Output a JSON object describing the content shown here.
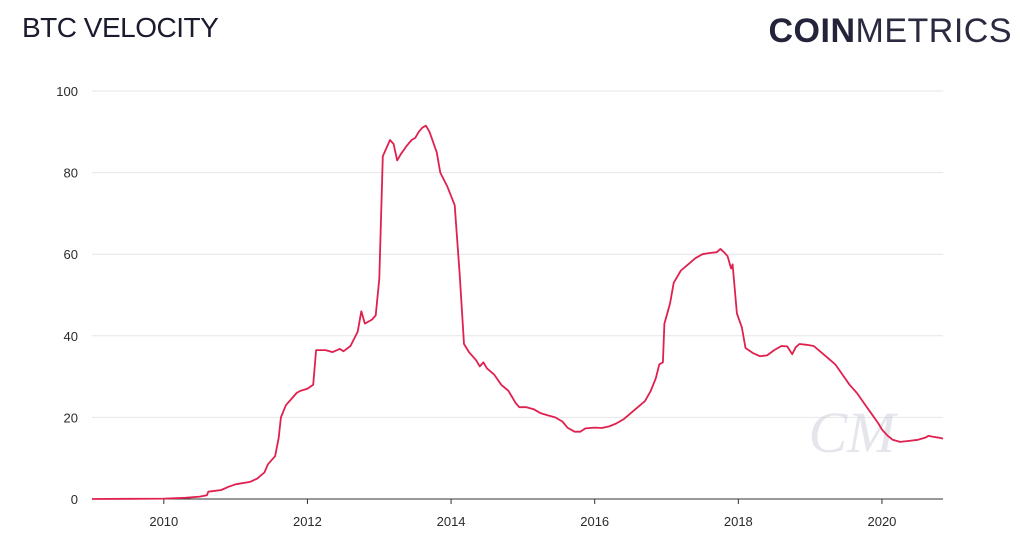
{
  "header": {
    "title": "BTC VELOCITY",
    "logo_bold": "COIN",
    "logo_light": "METRICS",
    "watermark": "CM"
  },
  "colors": {
    "line": "#e0204f",
    "grid": "#e6e6e6",
    "axis": "#333333",
    "watermark": "#cfd3de"
  },
  "chart_data": {
    "type": "line",
    "title": "BTC VELOCITY",
    "xlabel": "",
    "ylabel": "",
    "xlim": [
      2009.0,
      2020.85
    ],
    "ylim": [
      0,
      100
    ],
    "x_ticks": [
      2010,
      2012,
      2014,
      2016,
      2018,
      2020
    ],
    "y_ticks": [
      0,
      20,
      40,
      60,
      80,
      100
    ],
    "grid": "horizontal",
    "series": [
      {
        "name": "",
        "color": "#e0204f",
        "points": [
          [
            2009.0,
            0
          ],
          [
            2009.5,
            0.05
          ],
          [
            2010.0,
            0.1
          ],
          [
            2010.3,
            0.3
          ],
          [
            2010.5,
            0.6
          ],
          [
            2010.6,
            0.9
          ],
          [
            2010.62,
            1.8
          ],
          [
            2010.8,
            2.2
          ],
          [
            2010.9,
            3.0
          ],
          [
            2011.0,
            3.6
          ],
          [
            2011.2,
            4.2
          ],
          [
            2011.3,
            5.0
          ],
          [
            2011.4,
            6.5
          ],
          [
            2011.45,
            8.5
          ],
          [
            2011.55,
            10.5
          ],
          [
            2011.6,
            15
          ],
          [
            2011.63,
            20
          ],
          [
            2011.7,
            23
          ],
          [
            2011.8,
            25
          ],
          [
            2011.85,
            26
          ],
          [
            2011.9,
            26.5
          ],
          [
            2012.0,
            27
          ],
          [
            2012.08,
            28
          ],
          [
            2012.12,
            36.5
          ],
          [
            2012.25,
            36.5
          ],
          [
            2012.35,
            36
          ],
          [
            2012.45,
            36.8
          ],
          [
            2012.5,
            36.2
          ],
          [
            2012.6,
            37.5
          ],
          [
            2012.7,
            41
          ],
          [
            2012.75,
            46
          ],
          [
            2012.8,
            43
          ],
          [
            2012.9,
            44
          ],
          [
            2012.95,
            45
          ],
          [
            2013.0,
            54
          ],
          [
            2013.05,
            84
          ],
          [
            2013.1,
            86
          ],
          [
            2013.15,
            88
          ],
          [
            2013.2,
            87
          ],
          [
            2013.25,
            83
          ],
          [
            2013.3,
            84.5
          ],
          [
            2013.38,
            86.5
          ],
          [
            2013.45,
            88
          ],
          [
            2013.5,
            88.5
          ],
          [
            2013.55,
            90
          ],
          [
            2013.6,
            91
          ],
          [
            2013.65,
            91.5
          ],
          [
            2013.7,
            90
          ],
          [
            2013.8,
            85
          ],
          [
            2013.85,
            80
          ],
          [
            2013.95,
            76.5
          ],
          [
            2014.05,
            72
          ],
          [
            2014.12,
            55
          ],
          [
            2014.18,
            38
          ],
          [
            2014.25,
            36
          ],
          [
            2014.35,
            34
          ],
          [
            2014.4,
            32.5
          ],
          [
            2014.45,
            33.5
          ],
          [
            2014.5,
            32
          ],
          [
            2014.6,
            30.5
          ],
          [
            2014.7,
            28
          ],
          [
            2014.8,
            26.5
          ],
          [
            2014.85,
            25
          ],
          [
            2014.9,
            23.5
          ],
          [
            2014.95,
            22.5
          ],
          [
            2015.05,
            22.5
          ],
          [
            2015.15,
            22
          ],
          [
            2015.25,
            21
          ],
          [
            2015.35,
            20.5
          ],
          [
            2015.45,
            20
          ],
          [
            2015.55,
            19
          ],
          [
            2015.62,
            17.5
          ],
          [
            2015.72,
            16.5
          ],
          [
            2015.8,
            16.5
          ],
          [
            2015.87,
            17.3
          ],
          [
            2016.0,
            17.5
          ],
          [
            2016.1,
            17.4
          ],
          [
            2016.2,
            17.8
          ],
          [
            2016.3,
            18.5
          ],
          [
            2016.4,
            19.5
          ],
          [
            2016.5,
            21
          ],
          [
            2016.6,
            22.5
          ],
          [
            2016.7,
            24
          ],
          [
            2016.78,
            26.5
          ],
          [
            2016.85,
            29.5
          ],
          [
            2016.9,
            33
          ],
          [
            2016.95,
            33.5
          ],
          [
            2016.97,
            43
          ],
          [
            2017.05,
            48
          ],
          [
            2017.1,
            53
          ],
          [
            2017.2,
            56
          ],
          [
            2017.3,
            57.5
          ],
          [
            2017.4,
            59
          ],
          [
            2017.5,
            60
          ],
          [
            2017.6,
            60.3
          ],
          [
            2017.7,
            60.5
          ],
          [
            2017.75,
            61.3
          ],
          [
            2017.8,
            60.5
          ],
          [
            2017.85,
            59.5
          ],
          [
            2017.9,
            56.5
          ],
          [
            2017.92,
            57.5
          ],
          [
            2017.98,
            45.5
          ],
          [
            2018.05,
            42
          ],
          [
            2018.1,
            37
          ],
          [
            2018.2,
            35.8
          ],
          [
            2018.3,
            35
          ],
          [
            2018.4,
            35.2
          ],
          [
            2018.5,
            36.5
          ],
          [
            2018.6,
            37.5
          ],
          [
            2018.68,
            37.4
          ],
          [
            2018.75,
            35.5
          ],
          [
            2018.8,
            37.2
          ],
          [
            2018.85,
            38
          ],
          [
            2018.95,
            37.8
          ],
          [
            2019.05,
            37.5
          ],
          [
            2019.15,
            36
          ],
          [
            2019.25,
            34.5
          ],
          [
            2019.35,
            33
          ],
          [
            2019.45,
            30.5
          ],
          [
            2019.55,
            28
          ],
          [
            2019.65,
            26
          ],
          [
            2019.75,
            23.5
          ],
          [
            2019.85,
            21
          ],
          [
            2019.95,
            18.5
          ],
          [
            2020.0,
            17
          ],
          [
            2020.08,
            15.5
          ],
          [
            2020.15,
            14.5
          ],
          [
            2020.25,
            14
          ],
          [
            2020.35,
            14.2
          ],
          [
            2020.5,
            14.5
          ],
          [
            2020.6,
            15
          ],
          [
            2020.65,
            15.5
          ],
          [
            2020.7,
            15.3
          ],
          [
            2020.8,
            15
          ],
          [
            2020.85,
            14.8
          ],
          [
            2020.85,
            14.8
          ]
        ]
      }
    ]
  }
}
